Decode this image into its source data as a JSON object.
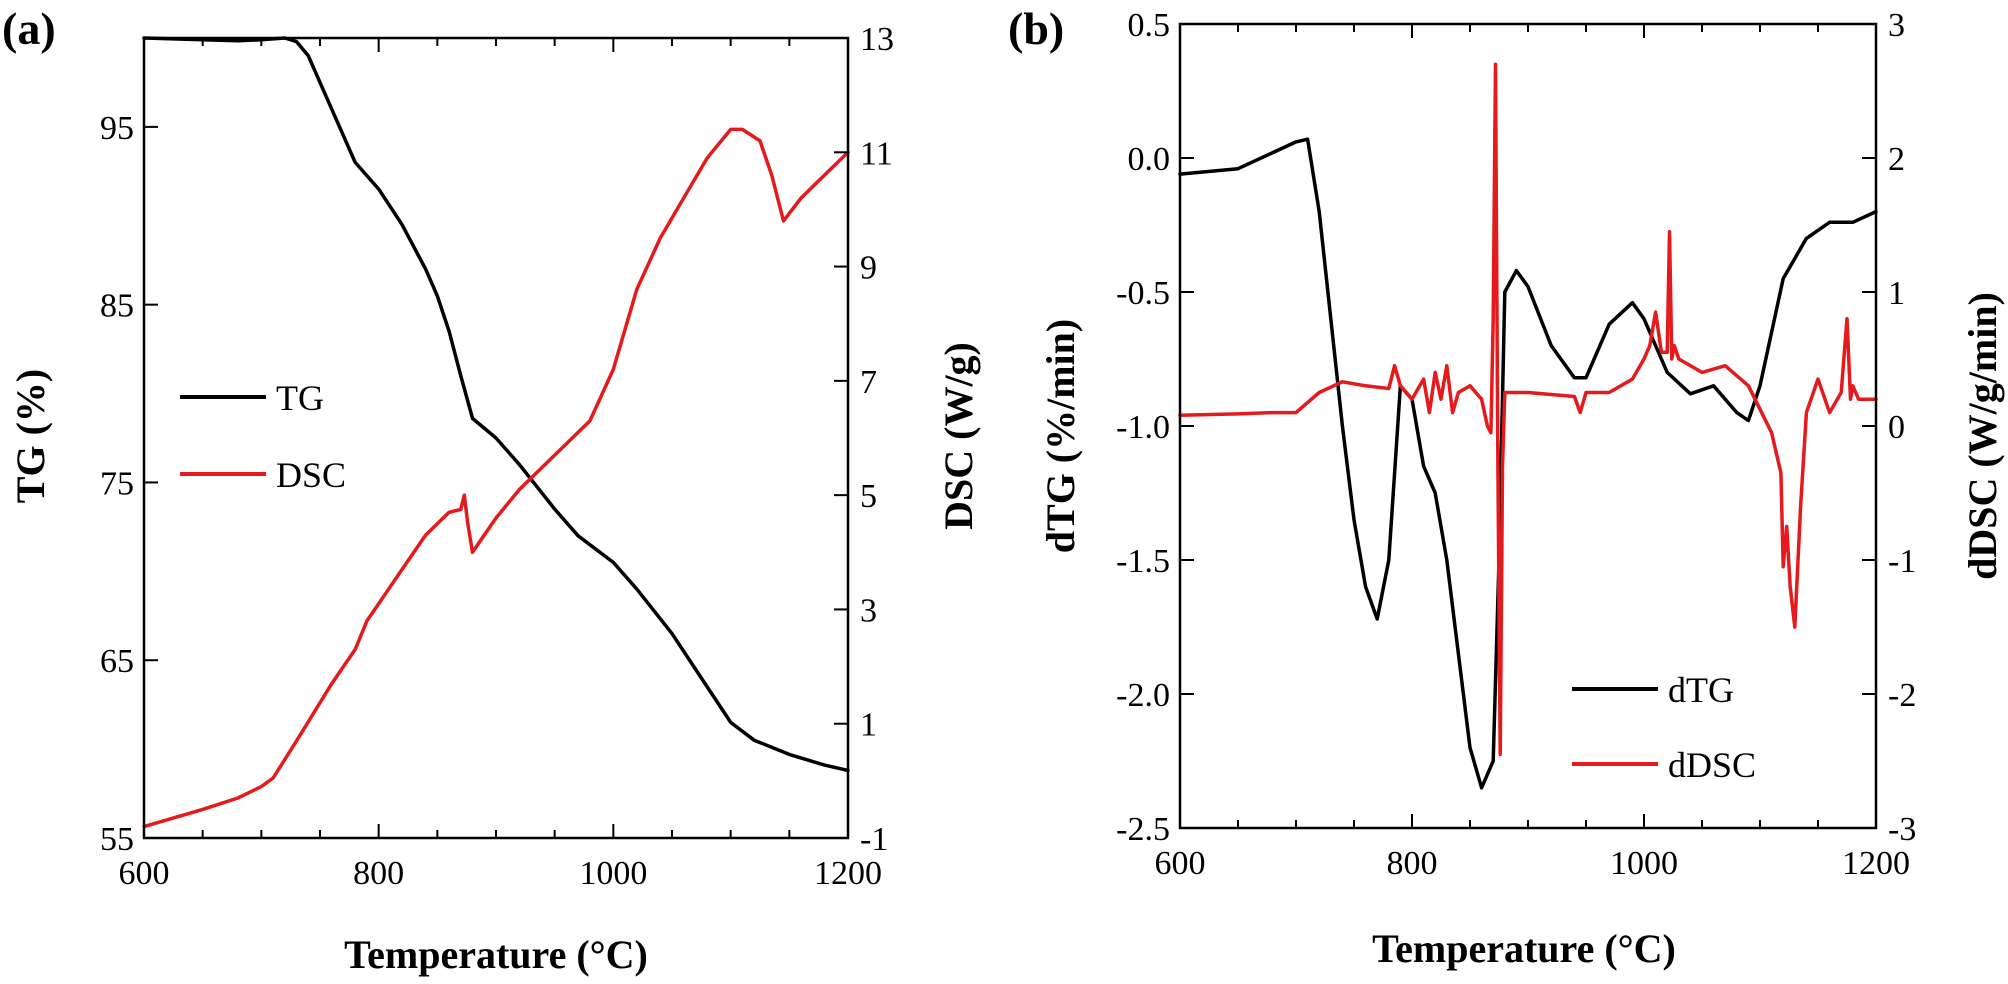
{
  "chart_data": [
    {
      "panel_label": "(a)",
      "type": "line",
      "xlabel": "Temperature (°C)",
      "ylabel": "TG (%)",
      "y2label": "DSC (W/g)",
      "xlim": [
        600,
        1200
      ],
      "ylim": [
        55,
        100
      ],
      "y2lim": [
        -1,
        13
      ],
      "xticks": [
        600,
        800,
        1000,
        1200
      ],
      "yticks": [
        55,
        65,
        75,
        85,
        95
      ],
      "y2ticks": [
        -1,
        1,
        3,
        5,
        7,
        9,
        11,
        13
      ],
      "legend_position": "center-left",
      "series": [
        {
          "name": "TG",
          "axis": "left",
          "color": "#000000",
          "x": [
            600,
            650,
            680,
            700,
            720,
            730,
            740,
            760,
            780,
            800,
            820,
            840,
            850,
            860,
            870,
            880,
            900,
            920,
            950,
            970,
            1000,
            1020,
            1050,
            1080,
            1100,
            1120,
            1150,
            1180,
            1200
          ],
          "y": [
            100,
            99.9,
            99.85,
            99.9,
            100,
            99.8,
            99,
            96,
            93,
            91.5,
            89.5,
            87,
            85.5,
            83.5,
            81,
            78.6,
            77.5,
            76,
            73.5,
            72,
            70.5,
            69,
            66.5,
            63.5,
            61.5,
            60.5,
            59.7,
            59.1,
            58.8
          ]
        },
        {
          "name": "DSC",
          "axis": "right",
          "color": "#e41a1c",
          "x": [
            600,
            650,
            680,
            700,
            710,
            730,
            760,
            780,
            790,
            800,
            820,
            840,
            860,
            870,
            873,
            876,
            880,
            900,
            920,
            950,
            980,
            1000,
            1020,
            1040,
            1060,
            1080,
            1100,
            1110,
            1125,
            1135,
            1145,
            1160,
            1180,
            1200
          ],
          "y": [
            -0.8,
            -0.5,
            -0.3,
            -0.1,
            0.05,
            0.7,
            1.7,
            2.3,
            2.8,
            3.1,
            3.7,
            4.3,
            4.7,
            4.75,
            5.0,
            4.5,
            4.0,
            4.6,
            5.1,
            5.7,
            6.3,
            7.2,
            8.6,
            9.5,
            10.2,
            10.9,
            11.4,
            11.4,
            11.2,
            10.6,
            9.8,
            10.2,
            10.6,
            11.0
          ]
        }
      ]
    },
    {
      "panel_label": "(b)",
      "type": "line",
      "xlabel": "Temperature (°C)",
      "ylabel": "dTG (%/min)",
      "y2label": "dDSC (W/g/min)",
      "xlim": [
        600,
        1200
      ],
      "ylim": [
        -2.5,
        0.5
      ],
      "y2lim": [
        -3,
        3
      ],
      "xticks": [
        600,
        800,
        1000,
        1200
      ],
      "yticks": [
        -2.5,
        -2.0,
        -1.5,
        -1.0,
        -0.5,
        0.0,
        0.5
      ],
      "ytick_labels": [
        "-2.5",
        "-2.0",
        "-1.5",
        "-1.0",
        "-0.5",
        "0.0",
        "0.5"
      ],
      "y2ticks": [
        -3,
        -2,
        -1,
        0,
        1,
        2,
        3
      ],
      "legend_position": "bottom-center",
      "series": [
        {
          "name": "dTG",
          "axis": "left",
          "color": "#000000",
          "x": [
            600,
            650,
            680,
            700,
            710,
            720,
            730,
            740,
            750,
            760,
            770,
            780,
            790,
            800,
            810,
            820,
            830,
            840,
            850,
            860,
            865,
            870,
            875,
            880,
            890,
            900,
            920,
            940,
            950,
            970,
            990,
            1000,
            1020,
            1040,
            1060,
            1080,
            1090,
            1100,
            1120,
            1140,
            1160,
            1180,
            1200
          ],
          "y": [
            -0.06,
            -0.04,
            0.02,
            0.06,
            0.07,
            -0.2,
            -0.6,
            -1.0,
            -1.35,
            -1.6,
            -1.72,
            -1.5,
            -0.85,
            -0.9,
            -1.15,
            -1.25,
            -1.5,
            -1.85,
            -2.2,
            -2.35,
            -2.3,
            -2.25,
            -1.5,
            -0.5,
            -0.42,
            -0.48,
            -0.7,
            -0.82,
            -0.82,
            -0.62,
            -0.54,
            -0.6,
            -0.8,
            -0.88,
            -0.85,
            -0.95,
            -0.98,
            -0.85,
            -0.45,
            -0.3,
            -0.24,
            -0.24,
            -0.2
          ]
        },
        {
          "name": "dDSC",
          "axis": "right",
          "color": "#e41a1c",
          "x": [
            600,
            650,
            680,
            700,
            720,
            740,
            760,
            780,
            785,
            790,
            800,
            810,
            815,
            820,
            825,
            830,
            835,
            840,
            850,
            860,
            865,
            868,
            870,
            872,
            874,
            876,
            878,
            880,
            900,
            940,
            945,
            950,
            970,
            990,
            1000,
            1005,
            1010,
            1015,
            1020,
            1022,
            1024,
            1026,
            1030,
            1050,
            1070,
            1090,
            1110,
            1118,
            1120,
            1123,
            1126,
            1130,
            1135,
            1140,
            1150,
            1160,
            1170,
            1175,
            1178,
            1180,
            1185,
            1190,
            1200
          ],
          "y": [
            0.08,
            0.09,
            0.1,
            0.1,
            0.25,
            0.33,
            0.3,
            0.28,
            0.45,
            0.3,
            0.2,
            0.35,
            0.1,
            0.4,
            0.2,
            0.45,
            0.1,
            0.25,
            0.3,
            0.2,
            0.0,
            -0.05,
            0.8,
            2.7,
            -0.2,
            -2.45,
            -0.3,
            0.25,
            0.25,
            0.22,
            0.1,
            0.25,
            0.25,
            0.35,
            0.5,
            0.6,
            0.85,
            0.55,
            0.55,
            1.45,
            0.5,
            0.6,
            0.5,
            0.4,
            0.45,
            0.3,
            -0.05,
            -0.35,
            -1.05,
            -0.75,
            -1.2,
            -1.5,
            -0.6,
            0.1,
            0.35,
            0.1,
            0.25,
            0.8,
            0.2,
            0.3,
            0.2,
            0.2,
            0.2
          ]
        }
      ]
    }
  ]
}
